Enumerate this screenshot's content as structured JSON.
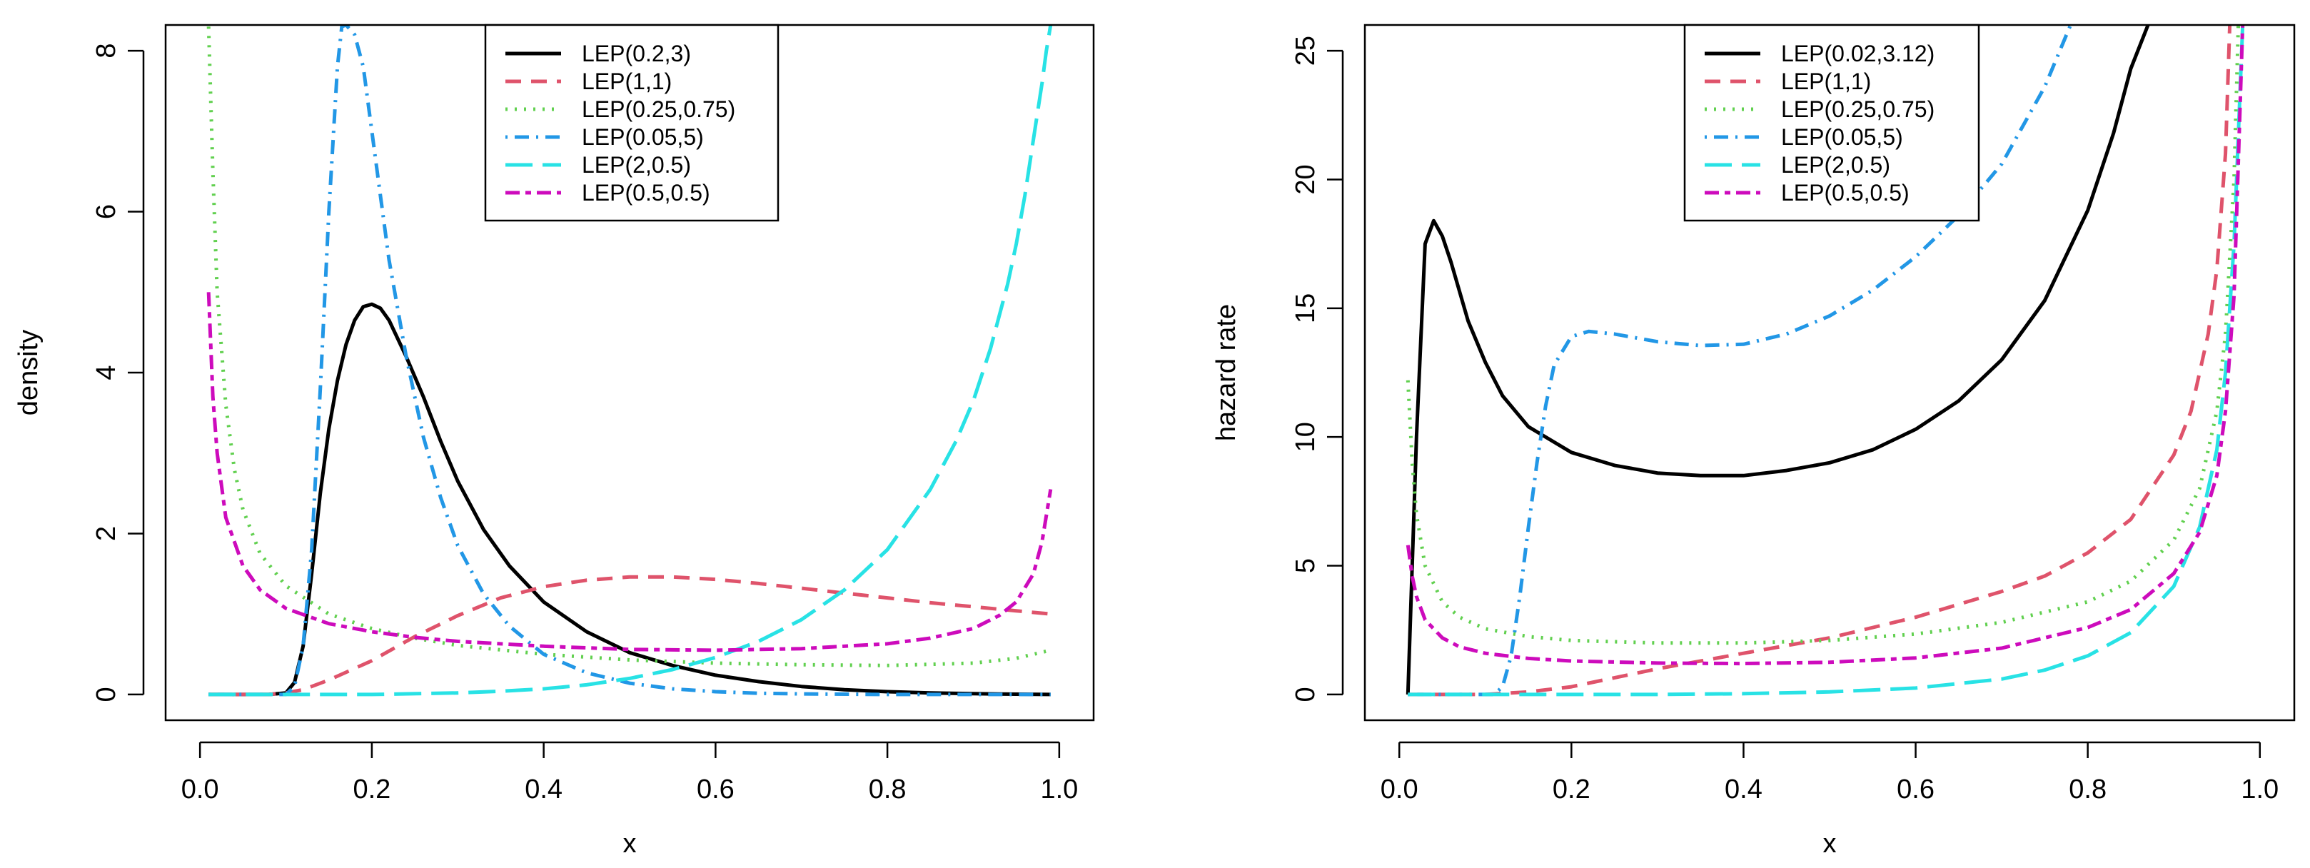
{
  "chart_data": [
    {
      "type": "line",
      "title": "",
      "xlabel": "x",
      "ylabel": "density",
      "xlim": [
        -0.04,
        1.04
      ],
      "ylim": [
        -0.32,
        8.32
      ],
      "xticks": [
        0.0,
        0.2,
        0.4,
        0.6,
        0.8,
        1.0
      ],
      "xtick_labels": [
        "0.0",
        "0.2",
        "0.4",
        "0.6",
        "0.8",
        "1.0"
      ],
      "yticks": [
        0,
        2,
        4,
        6,
        8
      ],
      "ytick_labels": [
        "0",
        "2",
        "4",
        "6",
        "8"
      ],
      "legend_position": "top-center",
      "series": [
        {
          "name": "LEP(0.2,3)",
          "color": "#000000",
          "dash": "solid",
          "x": [
            0.01,
            0.05,
            0.08,
            0.1,
            0.11,
            0.12,
            0.13,
            0.14,
            0.15,
            0.16,
            0.17,
            0.18,
            0.19,
            0.2,
            0.21,
            0.22,
            0.24,
            0.26,
            0.28,
            0.3,
            0.33,
            0.36,
            0.4,
            0.45,
            0.5,
            0.55,
            0.6,
            0.65,
            0.7,
            0.75,
            0.8,
            0.85,
            0.9,
            0.95,
            0.99
          ],
          "y": [
            0,
            0,
            0,
            0.02,
            0.15,
            0.6,
            1.5,
            2.5,
            3.3,
            3.9,
            4.35,
            4.65,
            4.82,
            4.85,
            4.8,
            4.65,
            4.2,
            3.7,
            3.15,
            2.65,
            2.05,
            1.6,
            1.15,
            0.78,
            0.52,
            0.36,
            0.24,
            0.16,
            0.1,
            0.06,
            0.035,
            0.02,
            0.01,
            0.004,
            0
          ]
        },
        {
          "name": "LEP(1,1)",
          "color": "#DF536B",
          "dash": "dashed",
          "x": [
            0.01,
            0.08,
            0.1,
            0.12,
            0.15,
            0.2,
            0.25,
            0.3,
            0.35,
            0.4,
            0.45,
            0.5,
            0.55,
            0.6,
            0.65,
            0.7,
            0.75,
            0.8,
            0.85,
            0.9,
            0.95,
            0.99
          ],
          "y": [
            0,
            0,
            0.02,
            0.06,
            0.18,
            0.42,
            0.72,
            0.98,
            1.2,
            1.34,
            1.42,
            1.46,
            1.46,
            1.43,
            1.38,
            1.32,
            1.26,
            1.2,
            1.14,
            1.09,
            1.04,
            1.0
          ]
        },
        {
          "name": "LEP(0.25,0.75)",
          "color": "#61D04F",
          "dash": "dotted",
          "x": [
            0.01,
            0.015,
            0.02,
            0.03,
            0.04,
            0.05,
            0.07,
            0.1,
            0.15,
            0.2,
            0.25,
            0.3,
            0.4,
            0.5,
            0.6,
            0.7,
            0.8,
            0.9,
            0.95,
            0.99
          ],
          "y": [
            8.3,
            6.5,
            5.0,
            3.6,
            2.8,
            2.3,
            1.75,
            1.35,
            1.0,
            0.82,
            0.7,
            0.61,
            0.5,
            0.43,
            0.39,
            0.37,
            0.36,
            0.39,
            0.45,
            0.55
          ]
        },
        {
          "name": "LEP(0.05,5)",
          "color": "#2297E6",
          "dash": "dotdash",
          "x": [
            0.01,
            0.1,
            0.11,
            0.12,
            0.13,
            0.14,
            0.15,
            0.16,
            0.165,
            0.17,
            0.18,
            0.19,
            0.2,
            0.21,
            0.22,
            0.24,
            0.26,
            0.28,
            0.3,
            0.33,
            0.36,
            0.4,
            0.45,
            0.5,
            0.55,
            0.6,
            0.65,
            0.7,
            0.8,
            0.99
          ],
          "y": [
            0,
            0,
            0.1,
            0.6,
            1.8,
            3.8,
            6.0,
            7.8,
            8.3,
            8.32,
            8.2,
            7.8,
            7.0,
            6.2,
            5.4,
            4.2,
            3.2,
            2.45,
            1.85,
            1.25,
            0.85,
            0.5,
            0.27,
            0.14,
            0.07,
            0.035,
            0.015,
            0.007,
            0,
            0
          ]
        },
        {
          "name": "LEP(2,0.5)",
          "color": "#28E2E5",
          "dash": "longdash",
          "x": [
            0.01,
            0.2,
            0.3,
            0.35,
            0.4,
            0.45,
            0.5,
            0.55,
            0.6,
            0.65,
            0.7,
            0.75,
            0.8,
            0.85,
            0.88,
            0.9,
            0.92,
            0.94,
            0.95,
            0.96,
            0.97,
            0.98,
            0.985,
            0.99
          ],
          "y": [
            0,
            0,
            0.02,
            0.04,
            0.07,
            0.12,
            0.2,
            0.31,
            0.46,
            0.66,
            0.93,
            1.3,
            1.8,
            2.55,
            3.15,
            3.65,
            4.3,
            5.1,
            5.6,
            6.2,
            6.9,
            7.6,
            8.0,
            8.32
          ]
        },
        {
          "name": "LEP(0.5,0.5)",
          "color": "#CD0BBC",
          "dash": "twodash",
          "x": [
            0.01,
            0.015,
            0.02,
            0.03,
            0.05,
            0.07,
            0.1,
            0.15,
            0.2,
            0.25,
            0.3,
            0.4,
            0.5,
            0.6,
            0.7,
            0.8,
            0.85,
            0.9,
            0.93,
            0.95,
            0.97,
            0.98,
            0.99
          ],
          "y": [
            5.0,
            3.7,
            3.0,
            2.2,
            1.6,
            1.3,
            1.07,
            0.88,
            0.78,
            0.71,
            0.66,
            0.6,
            0.56,
            0.55,
            0.57,
            0.63,
            0.7,
            0.82,
            0.98,
            1.15,
            1.5,
            1.9,
            2.55
          ]
        }
      ]
    },
    {
      "type": "line",
      "title": "",
      "xlabel": "x",
      "ylabel": "hazard rate",
      "xlim": [
        -0.04,
        1.04
      ],
      "ylim": [
        -1.0,
        26.0
      ],
      "xticks": [
        0.0,
        0.2,
        0.4,
        0.6,
        0.8,
        1.0
      ],
      "xtick_labels": [
        "0.0",
        "0.2",
        "0.4",
        "0.6",
        "0.8",
        "1.0"
      ],
      "yticks": [
        0,
        5,
        10,
        15,
        20,
        25
      ],
      "ytick_labels": [
        "0",
        "5",
        "10",
        "15",
        "20",
        "25"
      ],
      "legend_position": "top-center",
      "series": [
        {
          "name": "LEP(0.02,3.12)",
          "color": "#000000",
          "dash": "solid",
          "x": [
            0.01,
            0.02,
            0.03,
            0.04,
            0.05,
            0.06,
            0.08,
            0.1,
            0.12,
            0.15,
            0.2,
            0.25,
            0.3,
            0.35,
            0.4,
            0.45,
            0.5,
            0.55,
            0.6,
            0.65,
            0.7,
            0.75,
            0.8,
            0.83,
            0.85,
            0.87
          ],
          "y": [
            0,
            10,
            17.5,
            18.4,
            17.8,
            16.8,
            14.5,
            12.9,
            11.6,
            10.4,
            9.4,
            8.9,
            8.6,
            8.5,
            8.5,
            8.7,
            9.0,
            9.5,
            10.3,
            11.4,
            13.0,
            15.3,
            18.8,
            21.8,
            24.3,
            26.0
          ]
        },
        {
          "name": "LEP(1,1)",
          "color": "#DF536B",
          "dash": "dashed",
          "x": [
            0.01,
            0.1,
            0.15,
            0.2,
            0.3,
            0.4,
            0.5,
            0.6,
            0.7,
            0.75,
            0.8,
            0.85,
            0.9,
            0.92,
            0.94,
            0.95,
            0.96,
            0.965
          ],
          "y": [
            0,
            0,
            0.1,
            0.3,
            1.0,
            1.6,
            2.2,
            3.0,
            4.0,
            4.6,
            5.5,
            6.8,
            9.3,
            11.0,
            14.0,
            16.5,
            21.0,
            26.0
          ]
        },
        {
          "name": "LEP(0.25,0.75)",
          "color": "#61D04F",
          "dash": "dotted",
          "x": [
            0.01,
            0.015,
            0.02,
            0.03,
            0.05,
            0.07,
            0.1,
            0.15,
            0.2,
            0.3,
            0.4,
            0.5,
            0.6,
            0.7,
            0.8,
            0.85,
            0.9,
            0.93,
            0.95,
            0.96,
            0.97,
            0.975
          ],
          "y": [
            12.2,
            9.0,
            7.0,
            5.0,
            3.6,
            3.0,
            2.55,
            2.25,
            2.1,
            2.0,
            2.0,
            2.1,
            2.35,
            2.8,
            3.6,
            4.4,
            6.0,
            8.0,
            11.0,
            14.0,
            20.0,
            26.0
          ]
        },
        {
          "name": "LEP(0.05,5)",
          "color": "#2297E6",
          "dash": "dotdash",
          "x": [
            0.01,
            0.11,
            0.12,
            0.13,
            0.14,
            0.15,
            0.16,
            0.17,
            0.18,
            0.2,
            0.22,
            0.25,
            0.3,
            0.35,
            0.4,
            0.45,
            0.5,
            0.55,
            0.6,
            0.65,
            0.7,
            0.75,
            0.78
          ],
          "y": [
            0,
            0,
            0.3,
            1.5,
            3.8,
            6.5,
            9.0,
            11.2,
            12.8,
            13.9,
            14.1,
            14.0,
            13.7,
            13.55,
            13.6,
            14.0,
            14.7,
            15.7,
            17.0,
            18.6,
            20.6,
            23.6,
            26.0
          ]
        },
        {
          "name": "LEP(2,0.5)",
          "color": "#28E2E5",
          "dash": "longdash",
          "x": [
            0.01,
            0.2,
            0.3,
            0.4,
            0.5,
            0.6,
            0.7,
            0.75,
            0.8,
            0.85,
            0.9,
            0.93,
            0.95,
            0.96,
            0.97,
            0.98
          ],
          "y": [
            0,
            0,
            0,
            0.03,
            0.1,
            0.25,
            0.6,
            0.95,
            1.5,
            2.4,
            4.2,
            6.5,
            9.5,
            12.5,
            17.5,
            26.0
          ]
        },
        {
          "name": "LEP(0.5,0.5)",
          "color": "#CD0BBC",
          "dash": "twodash",
          "x": [
            0.01,
            0.015,
            0.02,
            0.03,
            0.05,
            0.07,
            0.1,
            0.15,
            0.2,
            0.3,
            0.4,
            0.5,
            0.6,
            0.7,
            0.8,
            0.85,
            0.9,
            0.93,
            0.95,
            0.96,
            0.97,
            0.98
          ],
          "y": [
            5.8,
            4.6,
            3.8,
            2.9,
            2.2,
            1.85,
            1.6,
            1.4,
            1.3,
            1.22,
            1.2,
            1.25,
            1.42,
            1.8,
            2.6,
            3.3,
            4.7,
            6.3,
            8.5,
            11.0,
            15.5,
            26.0
          ]
        }
      ]
    }
  ]
}
